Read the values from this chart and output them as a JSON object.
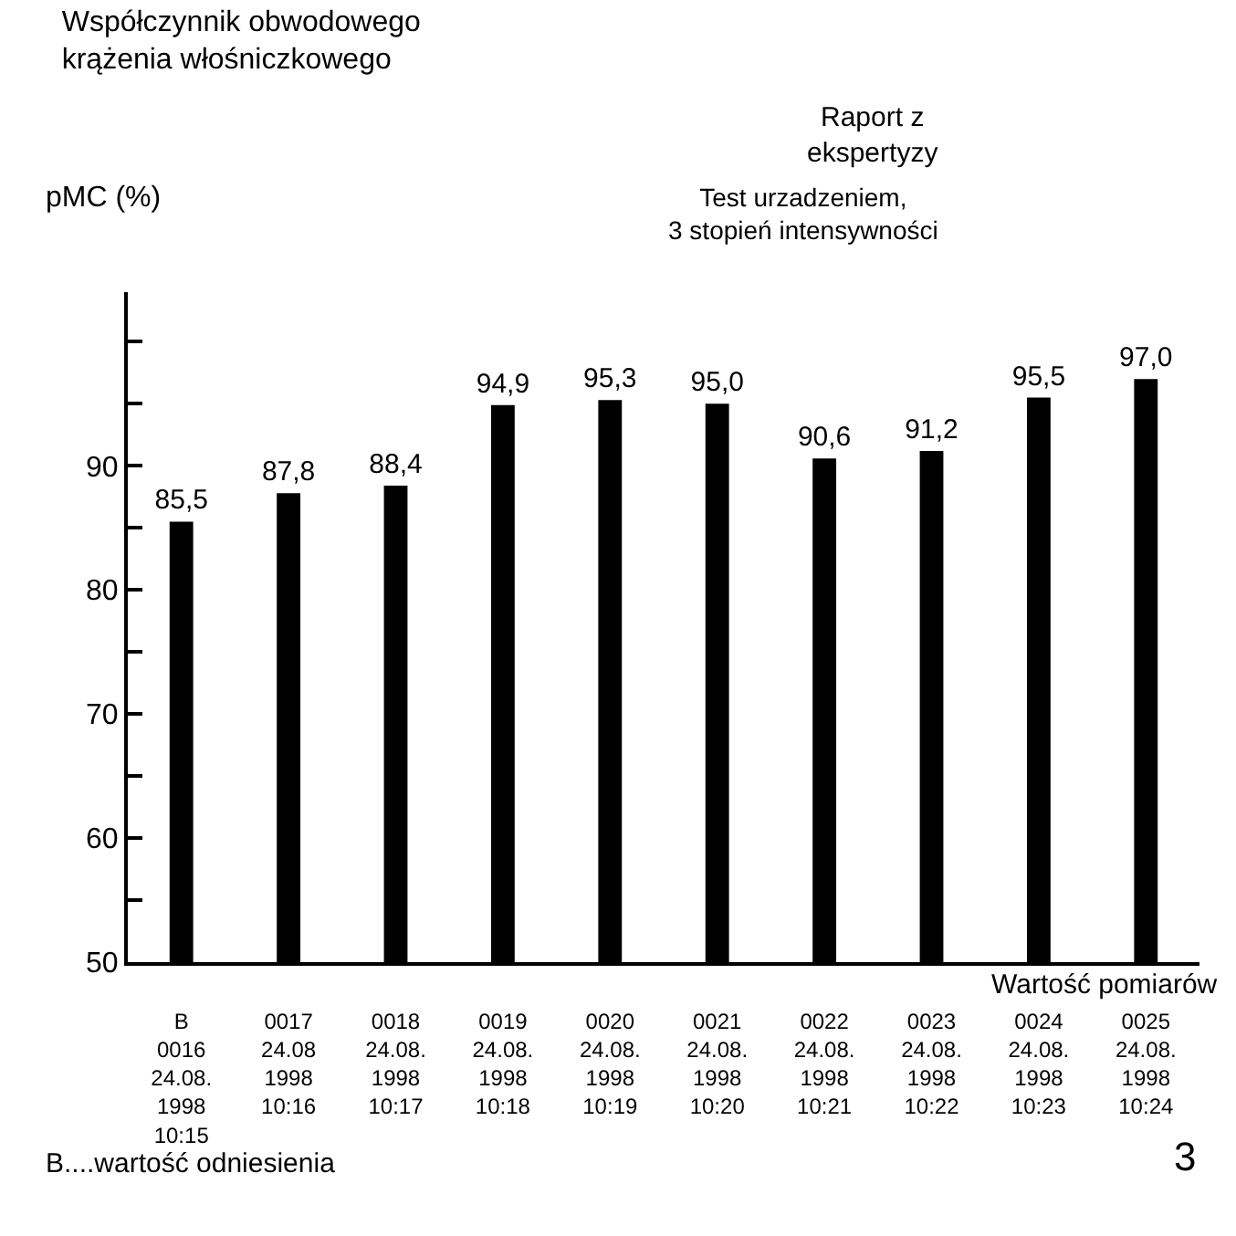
{
  "chart_data": {
    "type": "bar",
    "title": "Współczynnik obwodowego krążenia włośniczkowego",
    "ylabel": "pMC (%)",
    "xlabel": "Wartość pomiarów",
    "categories": [
      "B\n0016\n24.08.\n1998\n10:15",
      "0017\n24.08\n1998\n10:16",
      "0018\n24.08.\n1998\n10:17",
      "0019\n24.08.\n1998\n10:18",
      "0020\n24.08.\n1998\n10:19",
      "0021\n24.08.\n1998\n10:20",
      "0022\n24.08.\n1998\n10:21",
      "0023\n24.08.\n1998\n10:22",
      "0024\n24.08.\n1998\n10:23",
      "0025\n24.08.\n1998\n10:24"
    ],
    "values": [
      85.5,
      87.8,
      88.4,
      94.9,
      95.3,
      95.0,
      90.6,
      91.2,
      95.5,
      97.0
    ],
    "value_labels": [
      "85,5",
      "87,8",
      "88,4",
      "94,9",
      "95,3",
      "95,0",
      "90,6",
      "91,2",
      "95,5",
      "97,0"
    ],
    "color": "#000000",
    "ylim": [
      50,
      104
    ],
    "yticks": [
      50,
      {
        "value": 55,
        "label": null
      },
      60,
      {
        "value": 65,
        "label": null
      },
      70,
      {
        "value": 75,
        "label": null
      },
      80,
      {
        "value": 85,
        "label": null
      },
      90,
      {
        "value": 95,
        "label": null
      },
      {
        "value": 100,
        "label": null
      }
    ],
    "legend": false,
    "annotations": [
      "Raport z ekspertyzy",
      "Test urzadzeniem, 3 stopień intensywności",
      "B....wartość odniesienia",
      "3"
    ]
  }
}
